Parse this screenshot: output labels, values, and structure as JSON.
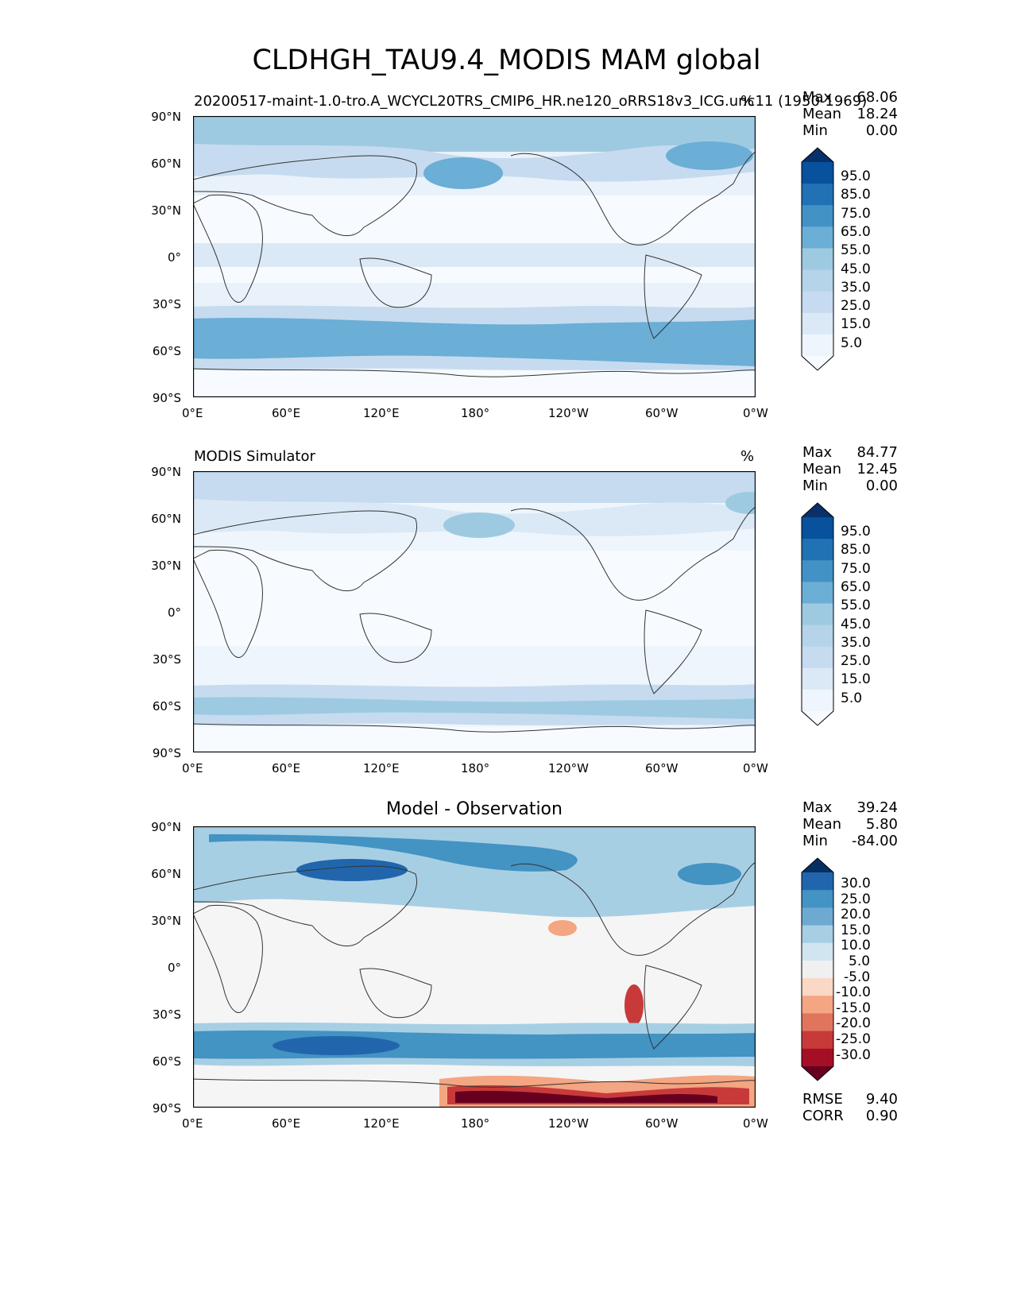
{
  "figure": {
    "title": "CLDHGH_TAU9.4_MODIS MAM global"
  },
  "axis_ticks": {
    "lat": [
      "90°N",
      "60°N",
      "30°N",
      "0°",
      "30°S",
      "60°S",
      "90°S"
    ],
    "lon": [
      "0°E",
      "60°E",
      "120°E",
      "180°",
      "120°W",
      "60°W",
      "0°W"
    ]
  },
  "panels": [
    {
      "left_title": "20200517-maint-1.0-tro.A_WCYCL20TRS_CMIP6_HR.ne120_oRRS18v3_ICG.unc11 (1950-1969)",
      "center_title": "",
      "units": "%",
      "stats": {
        "max_label": "Max",
        "max": "68.06",
        "mean_label": "Mean",
        "mean": "18.24",
        "min_label": "Min",
        "min": "0.00"
      },
      "colorbar": {
        "labels": [
          "95.0",
          "85.0",
          "75.0",
          "65.0",
          "55.0",
          "45.0",
          "35.0",
          "25.0",
          "15.0",
          "5.0"
        ],
        "colors": [
          "#08306b",
          "#08519c",
          "#2171b5",
          "#4292c6",
          "#6baed6",
          "#9ecae1",
          "#b5d4e9",
          "#c6dbef",
          "#dbe9f6",
          "#eef5fc",
          "#f7fbff"
        ]
      }
    },
    {
      "left_title": "MODIS Simulator",
      "center_title": "",
      "units": "%",
      "stats": {
        "max_label": "Max",
        "max": "84.77",
        "mean_label": "Mean",
        "mean": "12.45",
        "min_label": "Min",
        "min": "0.00"
      },
      "colorbar": {
        "labels": [
          "95.0",
          "85.0",
          "75.0",
          "65.0",
          "55.0",
          "45.0",
          "35.0",
          "25.0",
          "15.0",
          "5.0"
        ],
        "colors": [
          "#08306b",
          "#08519c",
          "#2171b5",
          "#4292c6",
          "#6baed6",
          "#9ecae1",
          "#b5d4e9",
          "#c6dbef",
          "#dbe9f6",
          "#eef5fc",
          "#f7fbff"
        ]
      }
    },
    {
      "left_title": "",
      "center_title": "Model - Observation",
      "units": "",
      "stats": {
        "max_label": "Max",
        "max": "39.24",
        "mean_label": "Mean",
        "mean": "5.80",
        "min_label": "Min",
        "min": "-84.00"
      },
      "extra_stats": {
        "rmse_label": "RMSE",
        "rmse": "9.40",
        "corr_label": "CORR",
        "corr": "0.90"
      },
      "colorbar": {
        "labels": [
          "30.0",
          "25.0",
          "20.0",
          "15.0",
          "10.0",
          "5.0",
          "-5.0",
          "-10.0",
          "-15.0",
          "-20.0",
          "-25.0",
          "-30.0"
        ],
        "colors": [
          "#053061",
          "#2166ac",
          "#4393c3",
          "#6ea9d2",
          "#a7cfe4",
          "#d1e5f0",
          "#f0f0f0",
          "#fbd7c6",
          "#f4a582",
          "#e0755e",
          "#c83a3a",
          "#a50f25",
          "#67001f"
        ]
      }
    }
  ]
}
